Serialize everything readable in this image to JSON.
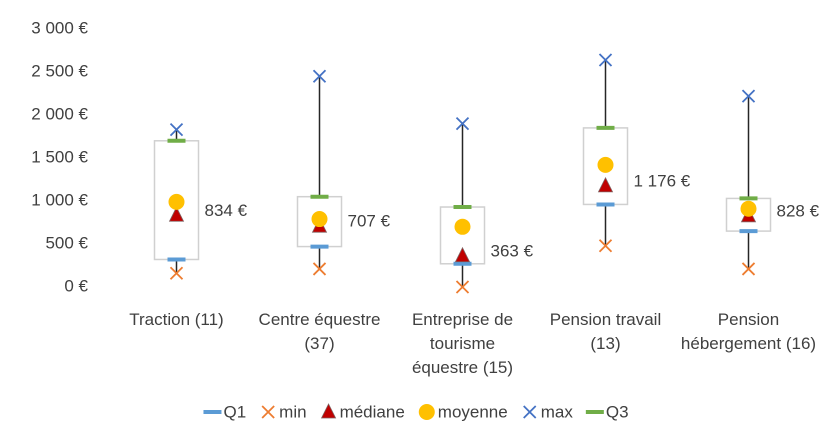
{
  "chart_data": {
    "type": "box",
    "categories": [
      "Traction (11)",
      "Centre équestre (37)",
      "Entreprise de tourisme équestre (15)",
      "Pension travail (13)",
      "Pension hébergement (16)"
    ],
    "series": [
      {
        "name": "Q1",
        "color": "#5b9bd5",
        "values": [
          320,
          470,
          270,
          960,
          650
        ]
      },
      {
        "name": "min",
        "color": "#ed7d31",
        "values": [
          160,
          210,
          0,
          480,
          210
        ]
      },
      {
        "name": "médiane",
        "color": "#c00000",
        "values": [
          834,
          707,
          363,
          1176,
          828
        ],
        "value_labels": [
          "834 €",
          "707 €",
          "363 €",
          "1 176 €",
          "828 €"
        ]
      },
      {
        "name": "moyenne",
        "color": "#ffc000",
        "values": [
          990,
          790,
          700,
          1420,
          910
        ]
      },
      {
        "name": "max",
        "color": "#4472c4",
        "values": [
          1830,
          2450,
          1900,
          2640,
          2220
        ]
      },
      {
        "name": "Q3",
        "color": "#70ad47",
        "values": [
          1700,
          1050,
          930,
          1850,
          1030
        ]
      }
    ],
    "ylim": [
      0,
      3000
    ],
    "yticks": [
      {
        "value": 0,
        "label": "0 €"
      },
      {
        "value": 500,
        "label": "500 €"
      },
      {
        "value": 1000,
        "label": "1 000 €"
      },
      {
        "value": 1500,
        "label": "1 500 €"
      },
      {
        "value": 2000,
        "label": "2 000 €"
      },
      {
        "value": 2500,
        "label": "2 500 €"
      },
      {
        "value": 3000,
        "label": "3 000 €"
      }
    ],
    "grid": false,
    "legend": "bottom"
  }
}
